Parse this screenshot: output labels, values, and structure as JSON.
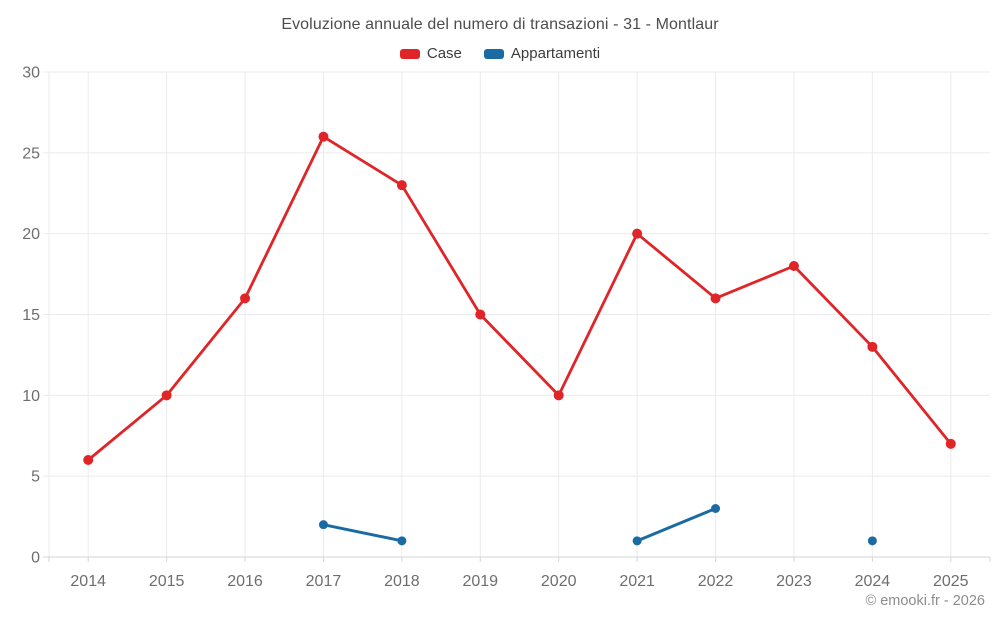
{
  "header": {
    "title": "Evoluzione annuale del numero di transazioni - 31 - Montlaur"
  },
  "legend": {
    "items": [
      {
        "label": "Case",
        "color": "#e02529"
      },
      {
        "label": "Appartamenti",
        "color": "#1a6ba3"
      }
    ]
  },
  "footer": {
    "copyright": "© emooki.fr - 2026"
  },
  "chart_data": {
    "type": "line",
    "title": "Evoluzione annuale del numero di transazioni - 31 - Montlaur",
    "categories": [
      "2014",
      "2015",
      "2016",
      "2017",
      "2018",
      "2019",
      "2020",
      "2021",
      "2022",
      "2023",
      "2024",
      "2025"
    ],
    "series": [
      {
        "name": "Case",
        "color": "#e02529",
        "marker_radius": 5,
        "line_width": 2.8,
        "values": [
          6,
          10,
          16,
          26,
          23,
          15,
          10,
          20,
          16,
          18,
          13,
          7
        ]
      },
      {
        "name": "Appartamenti",
        "color": "#1a6ba3",
        "marker_radius": 4.5,
        "line_width": 3,
        "values": [
          null,
          null,
          null,
          2,
          1,
          null,
          null,
          1,
          3,
          null,
          1,
          null
        ]
      }
    ],
    "ylim": [
      0,
      30
    ],
    "yticks": [
      0,
      5,
      10,
      15,
      20,
      25,
      30
    ],
    "grid": true,
    "legend_position": "top"
  },
  "style": {
    "background": "#ffffff",
    "grid_color": "#ebebeb",
    "axis_line_color": "#d6d6d6",
    "tick_label_color": "#6e6e6e",
    "title_color": "#4d4d4d",
    "legend_text_color": "#3d3d3d",
    "copyright_color": "#8d8d8d"
  }
}
